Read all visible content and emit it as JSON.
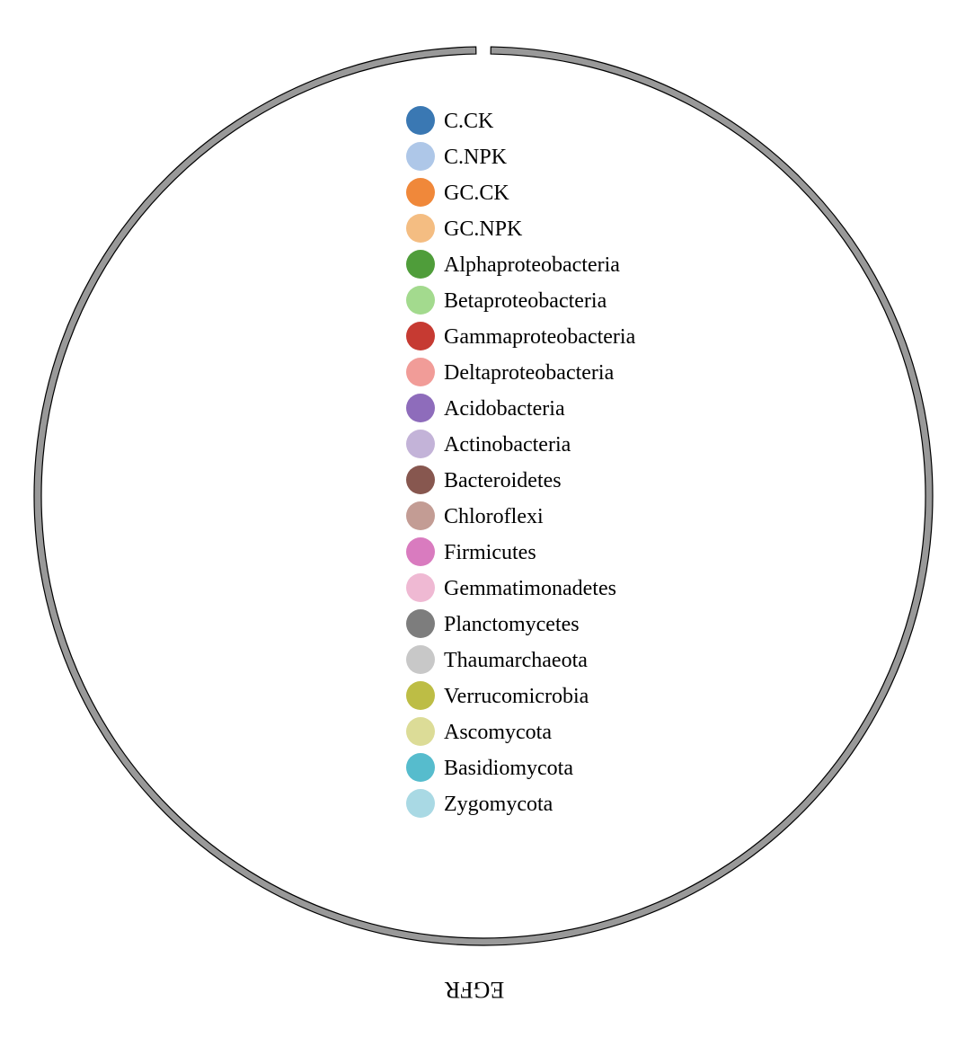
{
  "ring": {
    "label": "EGFR",
    "fill_color": "#999999",
    "stroke_color": "#000000"
  },
  "legend": {
    "items": [
      {
        "label": "C.CK",
        "color": "#3a78b3"
      },
      {
        "label": "C.NPK",
        "color": "#aec7e8"
      },
      {
        "label": "GC.CK",
        "color": "#f0883a"
      },
      {
        "label": "GC.NPK",
        "color": "#f4bd82"
      },
      {
        "label": "Alphaproteobacteria",
        "color": "#4f9d3a"
      },
      {
        "label": "Betaproteobacteria",
        "color": "#a3da8e"
      },
      {
        "label": "Gammaproteobacteria",
        "color": "#c63a32"
      },
      {
        "label": "Deltaproteobacteria",
        "color": "#f19c98"
      },
      {
        "label": "Acidobacteria",
        "color": "#8e6cbb"
      },
      {
        "label": "Actinobacteria",
        "color": "#c3b3d8"
      },
      {
        "label": "Bacteroidetes",
        "color": "#87574f"
      },
      {
        "label": "Chloroflexi",
        "color": "#c39c94"
      },
      {
        "label": "Firmicutes",
        "color": "#d97bbf"
      },
      {
        "label": "Gemmatimonadetes",
        "color": "#efb9d3"
      },
      {
        "label": "Planctomycetes",
        "color": "#7d7d7d"
      },
      {
        "label": "Thaumarchaeota",
        "color": "#c8c8c8"
      },
      {
        "label": "Verrucomicrobia",
        "color": "#bdbd45"
      },
      {
        "label": "Ascomycota",
        "color": "#dcdc97"
      },
      {
        "label": "Basidiomycota",
        "color": "#56bccd"
      },
      {
        "label": "Zygomycota",
        "color": "#a9d9e4"
      }
    ]
  }
}
